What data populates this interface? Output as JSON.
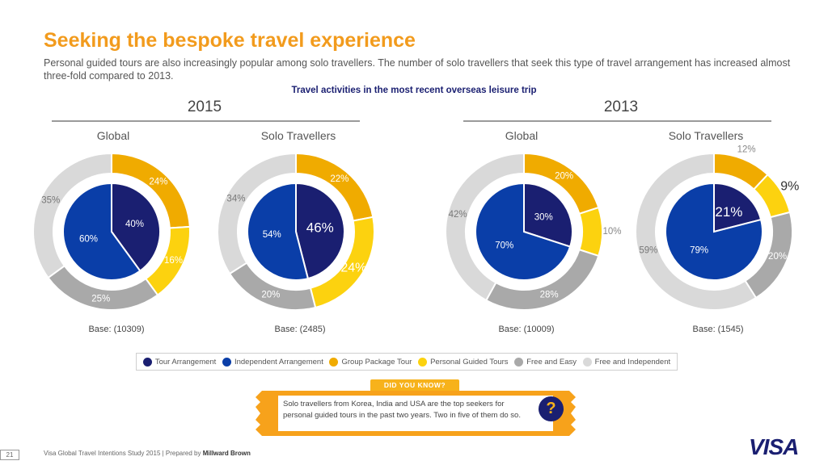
{
  "title": "Seeking the bespoke travel experience",
  "subtitle": "Personal guided tours are also increasingly popular among solo travellers. The number of solo travellers that seek this type of travel arrangement has increased almost three-fold compared to 2013.",
  "colors": {
    "tour": "#1a1f71",
    "independent": "#0a3ea8",
    "group": "#f0ab00",
    "personal": "#fcd20f",
    "easy": "#a9a9a9",
    "free": "#d9d9d9",
    "accent": "#f29b1d"
  },
  "legend": [
    {
      "name": "Tour Arrangement",
      "color": "#1a1f71"
    },
    {
      "name": "Independent Arrangement",
      "color": "#0a3ea8"
    },
    {
      "name": "Group Package Tour",
      "color": "#f0ab00"
    },
    {
      "name": "Personal Guided Tours",
      "color": "#fcd20f"
    },
    {
      "name": "Free and Easy",
      "color": "#a9a9a9"
    },
    {
      "name": "Free and Independent",
      "color": "#d9d9d9"
    }
  ],
  "did_you_know": {
    "label": "DID YOU KNOW?",
    "text": "Solo travellers from Korea, India and USA are the top seekers for personal guided tours in the past two years. Two in five of them do so.",
    "icon": "?"
  },
  "footer": {
    "page": "21",
    "text": "Visa Global Travel Intentions Study 2015 | Prepared by ",
    "bold": "Millward Brown",
    "logo": "VISA"
  },
  "chart_data": {
    "type": "pie",
    "title": "Travel activities in the most recent overseas leisure trip",
    "years": [
      "2015",
      "2013"
    ],
    "charts": [
      {
        "year": "2015",
        "label": "Global",
        "base": "Base: (10309)",
        "inner": [
          {
            "name": "Tour Arrangement",
            "value": 40,
            "label": "40%"
          },
          {
            "name": "Independent Arrangement",
            "value": 60,
            "label": "60%"
          }
        ],
        "outer": [
          {
            "name": "Group Package Tour",
            "value": 24,
            "label": "24%"
          },
          {
            "name": "Personal Guided Tours",
            "value": 16,
            "label": "16%"
          },
          {
            "name": "Free and Easy",
            "value": 25,
            "label": "25%"
          },
          {
            "name": "Free and Independent",
            "value": 35,
            "label": "35%"
          }
        ]
      },
      {
        "year": "2015",
        "label": "Solo Travellers",
        "base": "Base: (2485)",
        "inner": [
          {
            "name": "Tour Arrangement",
            "value": 46,
            "label": "46%"
          },
          {
            "name": "Independent Arrangement",
            "value": 54,
            "label": "54%"
          }
        ],
        "outer": [
          {
            "name": "Group Package Tour",
            "value": 22,
            "label": "22%"
          },
          {
            "name": "Personal Guided Tours",
            "value": 24,
            "label": "24%"
          },
          {
            "name": "Free and Easy",
            "value": 20,
            "label": "20%"
          },
          {
            "name": "Free and Independent",
            "value": 34,
            "label": "34%"
          }
        ]
      },
      {
        "year": "2013",
        "label": "Global",
        "base": "Base: (10009)",
        "inner": [
          {
            "name": "Tour Arrangement",
            "value": 30,
            "label": "30%"
          },
          {
            "name": "Independent Arrangement",
            "value": 70,
            "label": "70%"
          }
        ],
        "outer": [
          {
            "name": "Group Package Tour",
            "value": 20,
            "label": "20%"
          },
          {
            "name": "Personal Guided Tours",
            "value": 10,
            "label": "10%"
          },
          {
            "name": "Free and Easy",
            "value": 28,
            "label": "28%"
          },
          {
            "name": "Free and Independent",
            "value": 42,
            "label": "42%"
          }
        ]
      },
      {
        "year": "2013",
        "label": "Solo Travellers",
        "base": "Base: (1545)",
        "inner": [
          {
            "name": "Tour Arrangement",
            "value": 21,
            "label": "21%"
          },
          {
            "name": "Independent Arrangement",
            "value": 79,
            "label": "79%"
          }
        ],
        "outer": [
          {
            "name": "Group Package Tour",
            "value": 12,
            "label": "12%"
          },
          {
            "name": "Personal Guided Tours",
            "value": 9,
            "label": "9%"
          },
          {
            "name": "Free and Easy",
            "value": 20,
            "label": "20%"
          },
          {
            "name": "Free and Independent",
            "value": 59,
            "label": "59%"
          }
        ]
      }
    ]
  }
}
